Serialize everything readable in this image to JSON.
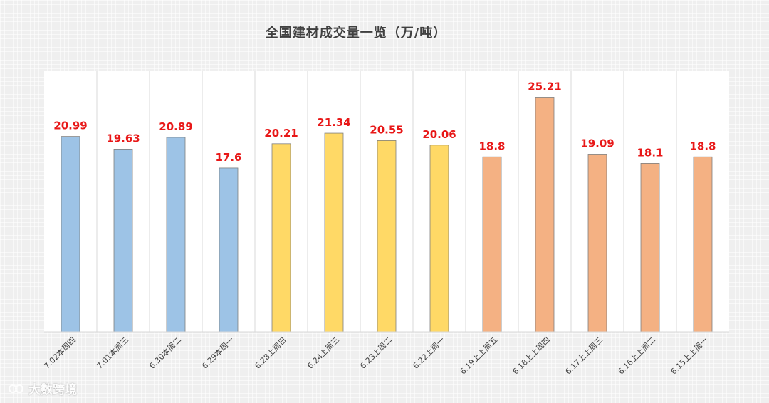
{
  "chart_data": {
    "type": "bar",
    "title": "全国建材成交量一览（万/吨）",
    "categories": [
      "7.02本周四",
      "7.01本周三",
      "6.30本周二",
      "6.29本周一",
      "6.28上周日",
      "6.24上周三",
      "6.23上周二",
      "6.22上周一",
      "6.19上上周五",
      "6.18上上周四",
      "6.17上上周三",
      "6.16上上周二",
      "6.15上上周一"
    ],
    "values": [
      20.99,
      19.63,
      20.89,
      17.6,
      20.21,
      21.34,
      20.55,
      20.06,
      18.8,
      25.21,
      19.09,
      18.1,
      18.8
    ],
    "value_labels": [
      "20.99",
      "19.63",
      "20.89",
      "17.6",
      "20.21",
      "21.34",
      "20.55",
      "20.06",
      "18.8",
      "25.21",
      "19.09",
      "18.1",
      "18.8"
    ],
    "bar_colors": [
      "#9dc3e6",
      "#9dc3e6",
      "#9dc3e6",
      "#9dc3e6",
      "#ffd966",
      "#ffd966",
      "#ffd966",
      "#ffd966",
      "#f4b183",
      "#f4b183",
      "#f4b183",
      "#f4b183",
      "#f4b183"
    ],
    "ylim": [
      0,
      28
    ],
    "grid": false,
    "legend": "none",
    "xlabel": "",
    "ylabel": ""
  },
  "watermark": {
    "icon": "logo-icon",
    "text": "大数跨境"
  }
}
